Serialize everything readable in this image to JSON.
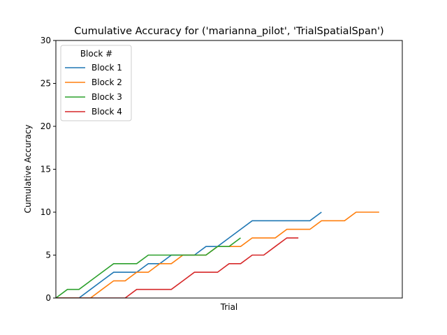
{
  "chart_data": {
    "type": "line",
    "title": "Cumulative Accuracy for ('marianna_pilot', 'TrialSpatialSpan')",
    "xlabel": "Trial",
    "ylabel": "Cumulative Accuracy",
    "xlim": [
      0,
      30
    ],
    "ylim": [
      0,
      30
    ],
    "yticks": [
      "0",
      "5",
      "10",
      "15",
      "20",
      "25",
      "30"
    ],
    "grid": false,
    "legend": {
      "title": "Block #",
      "placement": "top-left"
    },
    "colors": {
      "Block 1": "#1f77b4",
      "Block 2": "#ff7f0e",
      "Block 3": "#2ca02c",
      "Block 4": "#d62728"
    },
    "series": [
      {
        "name": "Block 1",
        "x": [
          0,
          1,
          2,
          3,
          4,
          5,
          6,
          7,
          8,
          9,
          10,
          11,
          12,
          13,
          14,
          15,
          16,
          17,
          18,
          19,
          20,
          21,
          22,
          23
        ],
        "values": [
          0,
          0,
          0,
          1,
          2,
          3,
          3,
          3,
          4,
          4,
          5,
          5,
          5,
          6,
          6,
          7,
          8,
          9,
          9,
          9,
          9,
          9,
          9,
          10
        ]
      },
      {
        "name": "Block 2",
        "x": [
          0,
          1,
          2,
          3,
          4,
          5,
          6,
          7,
          8,
          9,
          10,
          11,
          12,
          13,
          14,
          15,
          16,
          17,
          18,
          19,
          20,
          21,
          22,
          23,
          24,
          25,
          26,
          27,
          28
        ],
        "values": [
          0,
          0,
          0,
          0,
          1,
          2,
          2,
          3,
          3,
          4,
          4,
          5,
          5,
          5,
          6,
          6,
          6,
          7,
          7,
          7,
          8,
          8,
          8,
          9,
          9,
          9,
          10,
          10,
          10
        ]
      },
      {
        "name": "Block 3",
        "x": [
          0,
          1,
          2,
          3,
          4,
          5,
          6,
          7,
          8,
          9,
          10,
          11,
          12,
          13,
          14,
          15,
          16
        ],
        "values": [
          0,
          1,
          1,
          2,
          3,
          4,
          4,
          4,
          5,
          5,
          5,
          5,
          5,
          5,
          6,
          6,
          7
        ]
      },
      {
        "name": "Block 4",
        "x": [
          0,
          1,
          2,
          3,
          4,
          5,
          6,
          7,
          8,
          9,
          10,
          11,
          12,
          13,
          14,
          15,
          16,
          17,
          18,
          19,
          20,
          21
        ],
        "values": [
          0,
          0,
          0,
          0,
          0,
          0,
          0,
          1,
          1,
          1,
          1,
          2,
          3,
          3,
          3,
          4,
          4,
          5,
          5,
          6,
          7,
          7
        ]
      }
    ]
  }
}
